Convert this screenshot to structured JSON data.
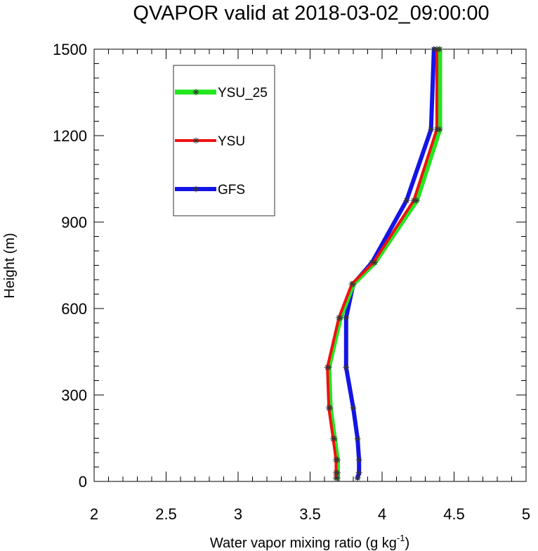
{
  "chart_data": {
    "type": "line",
    "title": "QVAPOR valid at 2018-03-02_09:00:00",
    "xlabel": "Water vapor mixing ratio (g kg",
    "xlabel_sup": "-1",
    "xlabel_end": ")",
    "ylabel": "Height (m)",
    "xlim": [
      2,
      5
    ],
    "ylim": [
      0,
      1500
    ],
    "xticks": [
      2,
      2.5,
      3,
      3.5,
      4,
      4.5,
      5
    ],
    "xtick_labels": [
      "2",
      "2.5",
      "3",
      "3.5",
      "4",
      "4.5",
      "5"
    ],
    "yticks": [
      0,
      300,
      600,
      900,
      1200,
      1500
    ],
    "ytick_labels": [
      "0",
      "300",
      "600",
      "900",
      "1200",
      "1500"
    ],
    "grid": false,
    "legend_position": "top-left",
    "series": [
      {
        "name": "YSU_25",
        "color": "#22e61e",
        "points": [
          [
            3.69,
            12
          ],
          [
            3.69,
            30
          ],
          [
            3.69,
            75
          ],
          [
            3.67,
            148
          ],
          [
            3.64,
            255
          ],
          [
            3.63,
            396
          ],
          [
            3.71,
            568
          ],
          [
            3.8,
            685
          ],
          [
            3.95,
            760
          ],
          [
            4.24,
            975
          ],
          [
            4.4,
            1222
          ],
          [
            4.4,
            1500
          ]
        ]
      },
      {
        "name": "YSU",
        "color": "#f01010",
        "points": [
          [
            3.68,
            12
          ],
          [
            3.68,
            30
          ],
          [
            3.68,
            75
          ],
          [
            3.66,
            148
          ],
          [
            3.63,
            255
          ],
          [
            3.62,
            396
          ],
          [
            3.7,
            568
          ],
          [
            3.79,
            685
          ],
          [
            3.94,
            760
          ],
          [
            4.22,
            975
          ],
          [
            4.38,
            1222
          ],
          [
            4.38,
            1500
          ]
        ]
      },
      {
        "name": "GFS",
        "color": "#1414e6",
        "points": [
          [
            3.83,
            12
          ],
          [
            3.84,
            30
          ],
          [
            3.84,
            75
          ],
          [
            3.83,
            148
          ],
          [
            3.8,
            255
          ],
          [
            3.75,
            396
          ],
          [
            3.75,
            568
          ],
          [
            3.8,
            685
          ],
          [
            3.93,
            760
          ],
          [
            4.17,
            975
          ],
          [
            4.34,
            1222
          ],
          [
            4.36,
            1500
          ]
        ]
      }
    ]
  }
}
